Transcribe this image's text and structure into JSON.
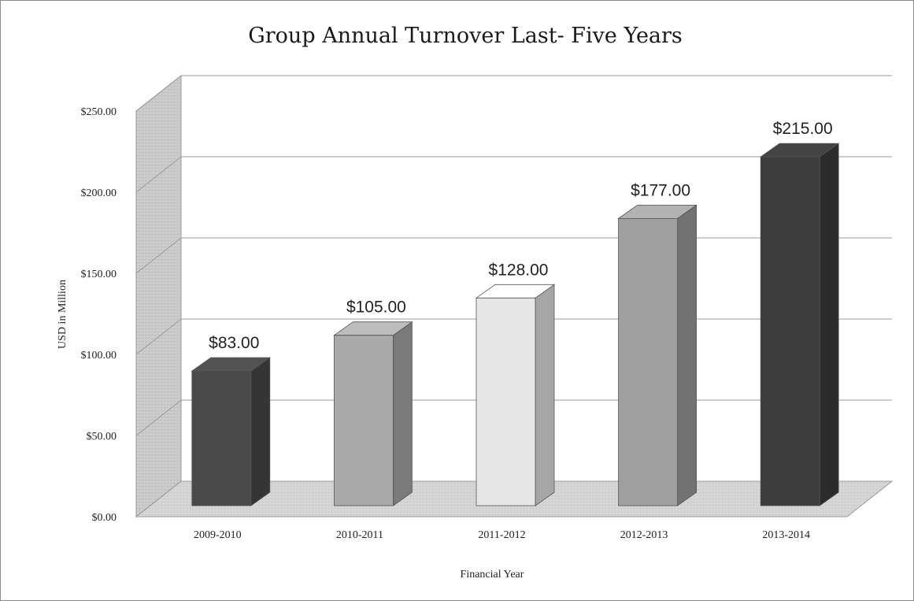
{
  "chart_data": {
    "type": "bar",
    "title": "Group Annual Turnover Last- Five Years",
    "xlabel": "Financial Year",
    "ylabel": "USD  in Million",
    "categories": [
      "2009-2010",
      "2010-2011",
      "2011-2012",
      "2012-2013",
      "2013-2014"
    ],
    "values": [
      83,
      105,
      128,
      177,
      215
    ],
    "data_labels": [
      "$83.00",
      "$105.00",
      "$128.00",
      "$177.00",
      "$215.00"
    ],
    "ylim": [
      0,
      250
    ],
    "yticks": [
      0,
      50,
      100,
      150,
      200,
      250
    ],
    "ytick_labels": [
      "$0.00",
      "$50.00",
      "$100.00",
      "$150.00",
      "$200.00",
      "$250.00"
    ],
    "grid": true,
    "legend": "none",
    "style": "3d-column",
    "bar_colors": [
      "#4a4a4a",
      "#a9a9a9",
      "#e6e6e6",
      "#9f9f9f",
      "#3c3c3c"
    ]
  }
}
